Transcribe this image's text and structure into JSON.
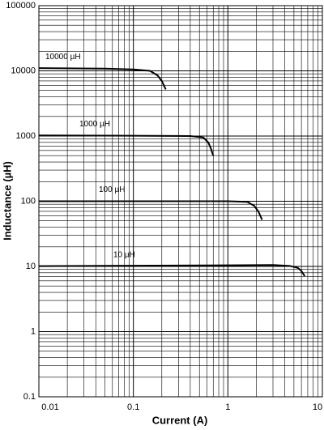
{
  "chart_data": {
    "type": "line",
    "x_label": "Current (A)",
    "y_label": "Inductance (µH)",
    "xscale": "log",
    "yscale": "log",
    "grid": true,
    "minor_grid": true,
    "color": "#000000",
    "xlim": [
      0.01,
      10
    ],
    "xticks": [
      0.01,
      0.1,
      1,
      10
    ],
    "ylim": [
      0.1,
      100000
    ],
    "yticks": [
      0.1,
      1,
      10,
      100,
      1000,
      10000,
      100000
    ],
    "series": [
      {
        "name": "10000 µH",
        "color": "#000000",
        "x": [
          0.01,
          0.05,
          0.1,
          0.15,
          0.18,
          0.2,
          0.22
        ],
        "values": [
          11000,
          10800,
          10500,
          10000,
          8500,
          7000,
          5200
        ]
      },
      {
        "name": "1000 µH",
        "color": "#000000",
        "x": [
          0.01,
          0.1,
          0.4,
          0.55,
          0.62,
          0.66,
          0.7
        ],
        "values": [
          1020,
          1010,
          1000,
          950,
          800,
          650,
          500
        ]
      },
      {
        "name": "100 µH",
        "color": "#000000",
        "x": [
          0.01,
          1,
          1.6,
          1.9,
          2.1,
          2.3
        ],
        "values": [
          100,
          100,
          98,
          85,
          70,
          52
        ]
      },
      {
        "name": "10 µH",
        "color": "#000000",
        "x": [
          0.01,
          1,
          3,
          4.5,
          5.5,
          6,
          6.5
        ],
        "values": [
          10.1,
          10.4,
          10.5,
          10.2,
          9.5,
          8.5,
          7.1
        ]
      }
    ]
  }
}
